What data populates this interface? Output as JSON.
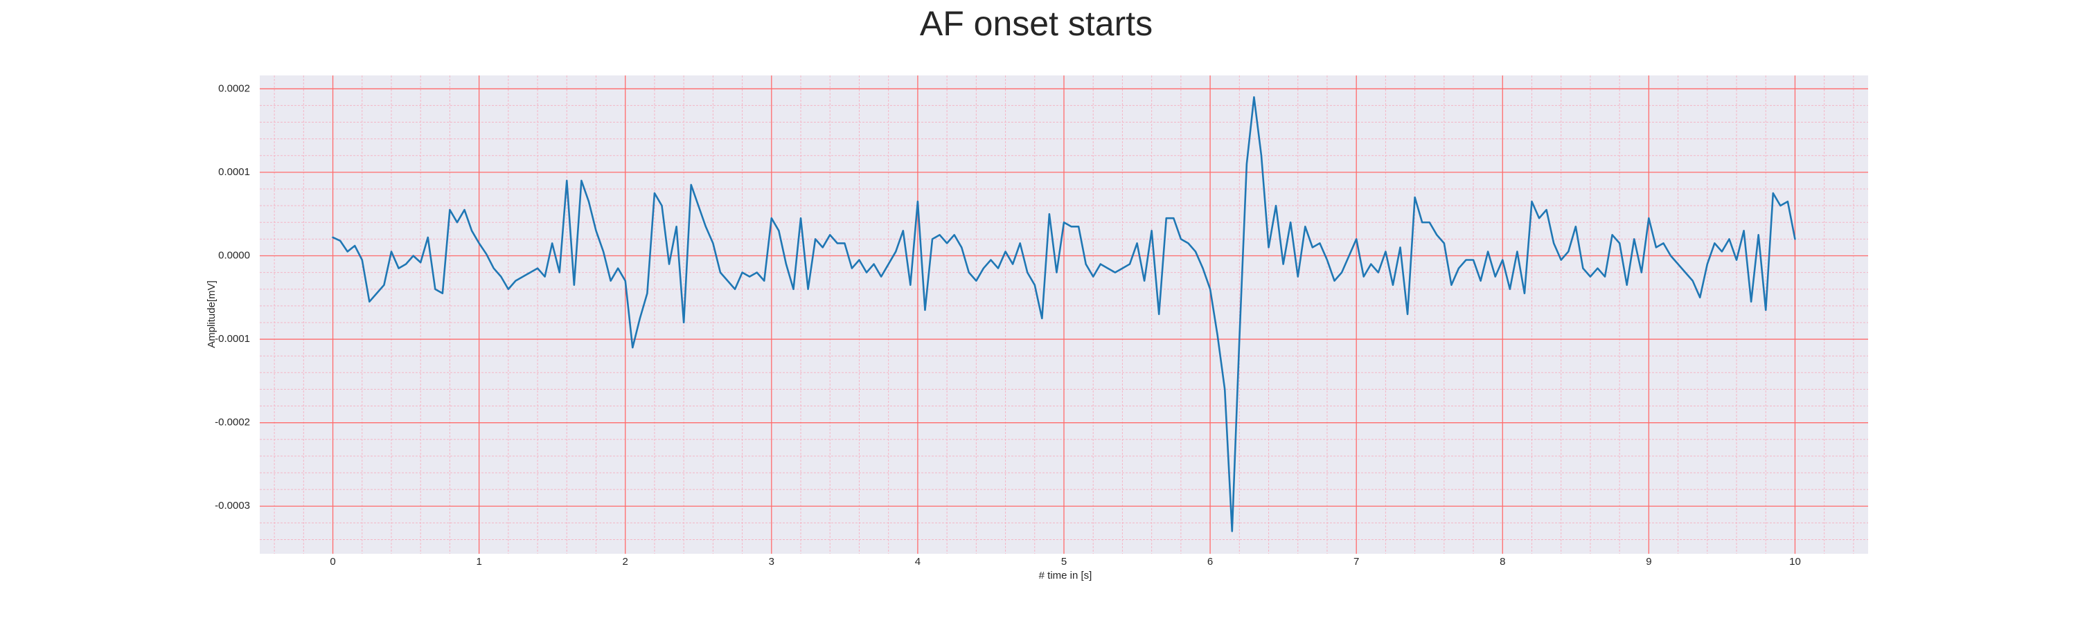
{
  "chart_data": {
    "type": "line",
    "title": "AF onset starts",
    "xlabel": "# time in [s]",
    "ylabel": "Amplitude[mV]",
    "color": "#1f77b4",
    "grid": true,
    "grid_color": "#ff6b6b",
    "minor_grid_color": "#f4b6c6",
    "background": "#eaeaf2",
    "xlim": [
      -0.5,
      10.5
    ],
    "ylim": [
      -0.000357,
      0.000216
    ],
    "xticks": [
      0,
      1,
      2,
      3,
      4,
      5,
      6,
      7,
      8,
      9,
      10
    ],
    "yticks": [
      {
        "value": 0.0002,
        "label": "0.0002"
      },
      {
        "value": 0.0001,
        "label": "0.0001"
      },
      {
        "value": 0,
        "label": "0.0000"
      },
      {
        "value": -0.0001,
        "label": "-0.0001"
      },
      {
        "value": -0.0002,
        "label": "-0.0002"
      },
      {
        "value": -0.0003,
        "label": "-0.0003"
      }
    ],
    "xminorticks": [
      -0.4,
      -0.2,
      0.2,
      0.4,
      0.6,
      0.8,
      1.2,
      1.4,
      1.6,
      1.8,
      2.2,
      2.4,
      2.6,
      2.8,
      3.2,
      3.4,
      3.6,
      3.8,
      4.2,
      4.4,
      4.6,
      4.8,
      5.2,
      5.4,
      5.6,
      5.8,
      6.2,
      6.4,
      6.6,
      6.8,
      7.2,
      7.4,
      7.6,
      7.8,
      8.2,
      8.4,
      8.6,
      8.8,
      9.2,
      9.4,
      9.6,
      9.8,
      10.2,
      10.4
    ],
    "yminorticks": [
      -0.00034,
      -0.00032,
      -0.00028,
      -0.00026,
      -0.00024,
      -0.00022,
      -0.00018,
      -0.00016,
      -0.00014,
      -0.00012,
      -8e-05,
      -6e-05,
      -4e-05,
      -2e-05,
      2e-05,
      4e-05,
      6e-05,
      8e-05,
      0.00012,
      0.00014,
      0.00016,
      0.00018
    ],
    "x": [
      0,
      0.05,
      0.1,
      0.15,
      0.2,
      0.25,
      0.3,
      0.35,
      0.4,
      0.45,
      0.5,
      0.55,
      0.6,
      0.65,
      0.7,
      0.75,
      0.8,
      0.85,
      0.9,
      0.95,
      1,
      1.05,
      1.1,
      1.15,
      1.2,
      1.25,
      1.3,
      1.35,
      1.4,
      1.45,
      1.5,
      1.55,
      1.6,
      1.65,
      1.7,
      1.75,
      1.8,
      1.85,
      1.9,
      1.95,
      2,
      2.05,
      2.1,
      2.15,
      2.2,
      2.25,
      2.3,
      2.35,
      2.4,
      2.45,
      2.5,
      2.55,
      2.6,
      2.65,
      2.7,
      2.75,
      2.8,
      2.85,
      2.9,
      2.95,
      3,
      3.05,
      3.1,
      3.15,
      3.2,
      3.25,
      3.3,
      3.35,
      3.4,
      3.45,
      3.5,
      3.55,
      3.6,
      3.65,
      3.7,
      3.75,
      3.8,
      3.85,
      3.9,
      3.95,
      4,
      4.05,
      4.1,
      4.15,
      4.2,
      4.25,
      4.3,
      4.35,
      4.4,
      4.45,
      4.5,
      4.55,
      4.6,
      4.65,
      4.7,
      4.75,
      4.8,
      4.85,
      4.9,
      4.95,
      5,
      5.05,
      5.1,
      5.15,
      5.2,
      5.25,
      5.3,
      5.35,
      5.4,
      5.45,
      5.5,
      5.55,
      5.6,
      5.65,
      5.7,
      5.75,
      5.8,
      5.85,
      5.9,
      5.95,
      6,
      6.05,
      6.1,
      6.15,
      6.2,
      6.25,
      6.3,
      6.35,
      6.4,
      6.45,
      6.5,
      6.55,
      6.6,
      6.65,
      6.7,
      6.75,
      6.8,
      6.85,
      6.9,
      6.95,
      7,
      7.05,
      7.1,
      7.15,
      7.2,
      7.25,
      7.3,
      7.35,
      7.4,
      7.45,
      7.5,
      7.55,
      7.6,
      7.65,
      7.7,
      7.75,
      7.8,
      7.85,
      7.9,
      7.95,
      8,
      8.05,
      8.1,
      8.15,
      8.2,
      8.25,
      8.3,
      8.35,
      8.4,
      8.45,
      8.5,
      8.55,
      8.6,
      8.65,
      8.7,
      8.75,
      8.8,
      8.85,
      8.9,
      8.95,
      9,
      9.05,
      9.1,
      9.15,
      9.2,
      9.25,
      9.3,
      9.35,
      9.4,
      9.45,
      9.5,
      9.55,
      9.6,
      9.65,
      9.7,
      9.75,
      9.8,
      9.85,
      9.9,
      9.95,
      10
    ],
    "values": [
      2.2e-05,
      1.8e-05,
      5e-06,
      1.2e-05,
      -5e-06,
      -5.5e-05,
      -4.5e-05,
      -3.5e-05,
      5e-06,
      -1.5e-05,
      -1e-05,
      0,
      -8e-06,
      2.2e-05,
      -4e-05,
      -4.5e-05,
      5.5e-05,
      4e-05,
      5.5e-05,
      3e-05,
      1.5e-05,
      2e-06,
      -1.5e-05,
      -2.5e-05,
      -4e-05,
      -3e-05,
      -2.5e-05,
      -2e-05,
      -1.5e-05,
      -2.5e-05,
      1.5e-05,
      -2e-05,
      9e-05,
      -3.5e-05,
      9e-05,
      6.5e-05,
      3e-05,
      5e-06,
      -3e-05,
      -1.5e-05,
      -3e-05,
      -0.00011,
      -7.5e-05,
      -4.5e-05,
      7.5e-05,
      6e-05,
      -1e-05,
      3.5e-05,
      -8e-05,
      8.5e-05,
      6e-05,
      3.5e-05,
      1.5e-05,
      -2e-05,
      -3e-05,
      -4e-05,
      -2e-05,
      -2.5e-05,
      -2e-05,
      -3e-05,
      4.5e-05,
      3e-05,
      -1e-05,
      -4e-05,
      4.5e-05,
      -4e-05,
      2e-05,
      1e-05,
      2.5e-05,
      1.5e-05,
      1.5e-05,
      -1.5e-05,
      -5e-06,
      -2e-05,
      -1e-05,
      -2.5e-05,
      -1e-05,
      5e-06,
      3e-05,
      -3.5e-05,
      6.5e-05,
      -6.5e-05,
      2e-05,
      2.5e-05,
      1.5e-05,
      2.5e-05,
      1e-05,
      -2e-05,
      -3e-05,
      -1.5e-05,
      -5e-06,
      -1.5e-05,
      5e-06,
      -1e-05,
      1.5e-05,
      -2e-05,
      -3.5e-05,
      -7.5e-05,
      5e-05,
      -2e-05,
      4e-05,
      3.5e-05,
      3.5e-05,
      -1e-05,
      -2.5e-05,
      -1e-05,
      -1.5e-05,
      -2e-05,
      -1.5e-05,
      -1e-05,
      1.5e-05,
      -3e-05,
      3e-05,
      -7e-05,
      4.5e-05,
      4.5e-05,
      2e-05,
      1.5e-05,
      5e-06,
      -1.5e-05,
      -4e-05,
      -9.5e-05,
      -0.00016,
      -0.00033,
      -0.0001,
      0.00011,
      0.00019,
      0.00012,
      1e-05,
      6e-05,
      -1e-05,
      4e-05,
      -2.5e-05,
      3.5e-05,
      1e-05,
      1.5e-05,
      -5e-06,
      -3e-05,
      -2e-05,
      0,
      2e-05,
      -2.5e-05,
      -1e-05,
      -2e-05,
      5e-06,
      -3.5e-05,
      1e-05,
      -7e-05,
      7e-05,
      4e-05,
      4e-05,
      2.5e-05,
      1.5e-05,
      -3.5e-05,
      -1.5e-05,
      -5e-06,
      -5e-06,
      -3e-05,
      5e-06,
      -2.5e-05,
      -5e-06,
      -4e-05,
      5e-06,
      -4.5e-05,
      6.5e-05,
      4.5e-05,
      5.5e-05,
      1.5e-05,
      -5e-06,
      5e-06,
      3.5e-05,
      -1.5e-05,
      -2.5e-05,
      -1.5e-05,
      -2.5e-05,
      2.5e-05,
      1.5e-05,
      -3.5e-05,
      2e-05,
      -2e-05,
      4.5e-05,
      1e-05,
      1.5e-05,
      0,
      -1e-05,
      -2e-05,
      -3e-05,
      -5e-05,
      -1e-05,
      1.5e-05,
      5e-06,
      2e-05,
      -5e-06,
      3e-05,
      -5.5e-05,
      2.5e-05,
      -6.5e-05,
      7.5e-05,
      6e-05,
      6.5e-05,
      2e-05
    ]
  }
}
